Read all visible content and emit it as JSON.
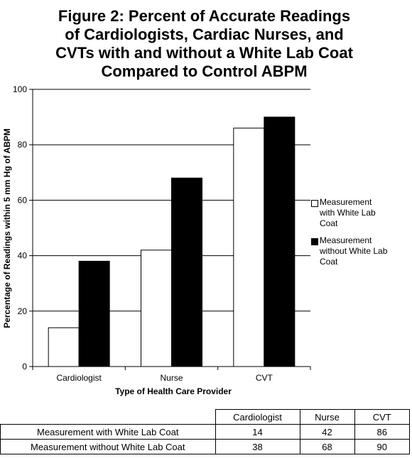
{
  "chart_data": {
    "type": "bar",
    "title_lines": [
      "Figure 2: Percent of Accurate Readings",
      "of Cardiologists, Cardiac Nurses, and",
      "CVTs with and without a White Lab Coat",
      "Compared to Control ABPM"
    ],
    "xlabel": "Type of Health Care Provider",
    "ylabel": "Percentage of Readings within 5 mm Hg of ABPM",
    "categories": [
      "Cardiologist",
      "Nurse",
      "CVT"
    ],
    "ylim": [
      0,
      100
    ],
    "yticks": [
      "0",
      "20",
      "40",
      "60",
      "80",
      "100"
    ],
    "grid": true,
    "legend_position": "right",
    "series": [
      {
        "name": "Measurement with White Lab Coat",
        "values": [
          14,
          42,
          86
        ],
        "color": "#ffffff"
      },
      {
        "name": "Measurement without White Lab Coat",
        "values": [
          38,
          68,
          90
        ],
        "color": "#000000"
      }
    ]
  },
  "legend": {
    "with_lines": [
      "Measurement",
      "with White Lab",
      "Coat"
    ],
    "without_lines": [
      "Measurement",
      "without White Lab",
      "Coat"
    ]
  },
  "table": {
    "headers": [
      "Cardiologist",
      "Nurse",
      "CVT"
    ],
    "rows": [
      {
        "label": "Measurement with White Lab Coat",
        "values": [
          "14",
          "42",
          "86"
        ]
      },
      {
        "label": "Measurement without White Lab Coat",
        "values": [
          "38",
          "68",
          "90"
        ]
      }
    ]
  }
}
